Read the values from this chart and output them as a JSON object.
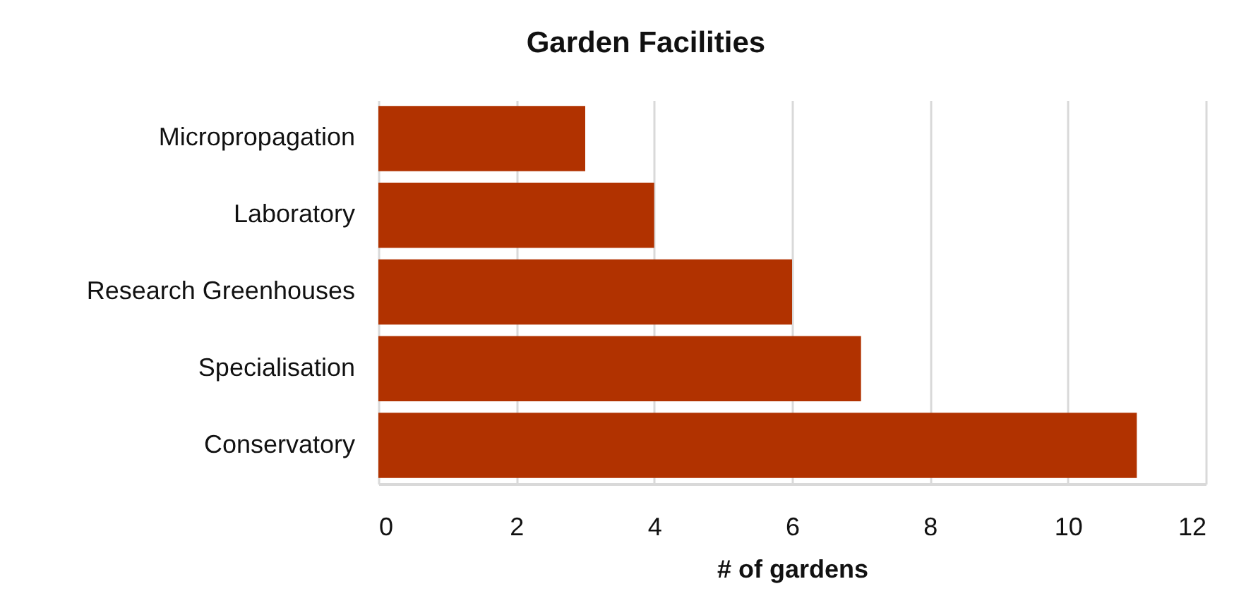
{
  "chart_data": {
    "type": "bar",
    "orientation": "horizontal",
    "title": "Garden Facilities",
    "xlabel": "# of gardens",
    "categories": [
      "Micropropagation",
      "Laboratory",
      "Research Greenhouses",
      "Specialisation",
      "Conservatory"
    ],
    "values": [
      3,
      4,
      6,
      7,
      11
    ],
    "color": "#b13200",
    "xlim": [
      0,
      12
    ],
    "xticks": [
      0,
      2,
      4,
      6,
      8,
      10,
      12
    ],
    "grid": "x"
  }
}
